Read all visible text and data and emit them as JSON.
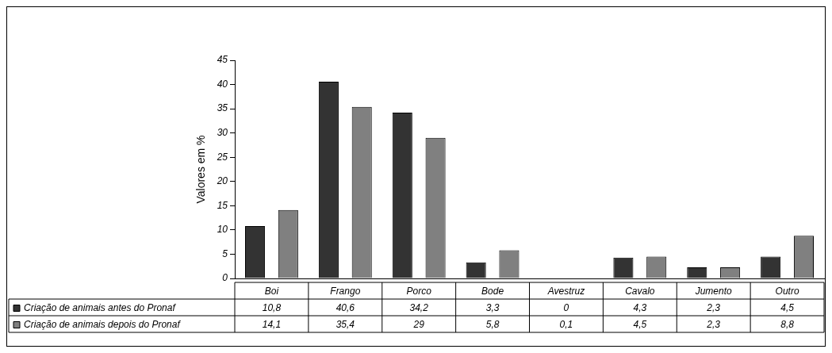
{
  "chart_data": {
    "type": "bar",
    "ylabel": "Valores em %",
    "categories": [
      "Boi",
      "Frango",
      "Porco",
      "Bode",
      "Avestruz",
      "Cavalo",
      "Jumento",
      "Outro"
    ],
    "series": [
      {
        "name": "Criação de animais antes do Pronaf",
        "color": "#333333",
        "values": [
          10.8,
          40.6,
          34.2,
          3.3,
          0,
          4.3,
          2.3,
          4.5
        ],
        "value_labels": [
          "10,8",
          "40,6",
          "34,2",
          "3,3",
          "0",
          "4,3",
          "2,3",
          "4,5"
        ]
      },
      {
        "name": "Criação de animais depois do Pronaf",
        "color": "#808080",
        "values": [
          14.1,
          35.4,
          29,
          5.8,
          0.1,
          4.5,
          2.3,
          8.8
        ],
        "value_labels": [
          "14,1",
          "35,4",
          "29",
          "5,8",
          "0,1",
          "4,5",
          "2,3",
          "8,8"
        ]
      }
    ],
    "ylim": [
      0,
      45
    ],
    "yticks": [
      0,
      5,
      10,
      15,
      20,
      25,
      30,
      35,
      40,
      45
    ],
    "legend": "bottom",
    "grid": false
  }
}
